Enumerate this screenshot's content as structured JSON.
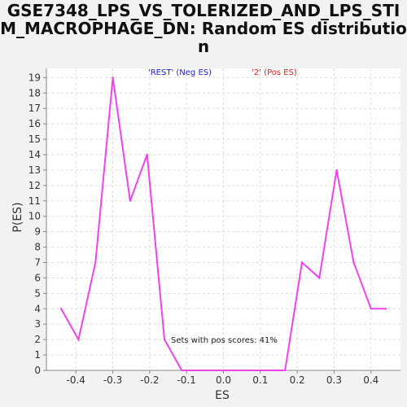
{
  "chart_data": {
    "type": "line",
    "title": "GSE7348_LPS_VS_TOLERIZED_AND_LPS_STIM_MACROPHAGE_DN: Random ES distribution",
    "xlabel": "ES",
    "ylabel": "P(ES)",
    "xlim": [
      -0.48,
      0.48
    ],
    "ylim": [
      0,
      19.6
    ],
    "x_ticks": [
      -0.4,
      -0.3,
      -0.2,
      -0.1,
      0.0,
      0.1,
      0.2,
      0.3,
      0.4
    ],
    "x_tick_labels": [
      "-0.4",
      "-0.3",
      "-0.2",
      "-0.1",
      "0.0",
      "0.1",
      "0.2",
      "0.3",
      "0.4"
    ],
    "y_ticks": [
      0,
      1,
      2,
      3,
      4,
      5,
      6,
      7,
      8,
      9,
      10,
      11,
      12,
      13,
      14,
      15,
      16,
      17,
      18,
      19
    ],
    "y_tick_labels": [
      "0",
      "1",
      "2",
      "3",
      "4",
      "5",
      "6",
      "7",
      "8",
      "9",
      "10",
      "11",
      "12",
      "13",
      "14",
      "15",
      "16",
      "17",
      "18",
      "19"
    ],
    "grid": true,
    "series": [
      {
        "name": "Random ES distribution",
        "color": "#ee44ee",
        "x": [
          -0.44,
          -0.393,
          -0.347,
          -0.3,
          -0.253,
          -0.207,
          -0.16,
          -0.113,
          -0.067,
          -0.02,
          0.027,
          0.073,
          0.12,
          0.167,
          0.213,
          0.26,
          0.307,
          0.353,
          0.4,
          0.44
        ],
        "y": [
          4,
          2,
          7,
          19,
          11,
          14,
          2,
          0,
          0,
          0,
          0,
          0,
          0,
          0,
          7,
          6,
          13,
          7,
          4,
          4
        ]
      }
    ],
    "legend": [
      {
        "label": "'REST' (Neg ES)",
        "color": "#2222cc"
      },
      {
        "label": "'2' (Pos ES)",
        "color": "#dd2222"
      }
    ],
    "annotation": "Sets with pos scores: 41%"
  }
}
